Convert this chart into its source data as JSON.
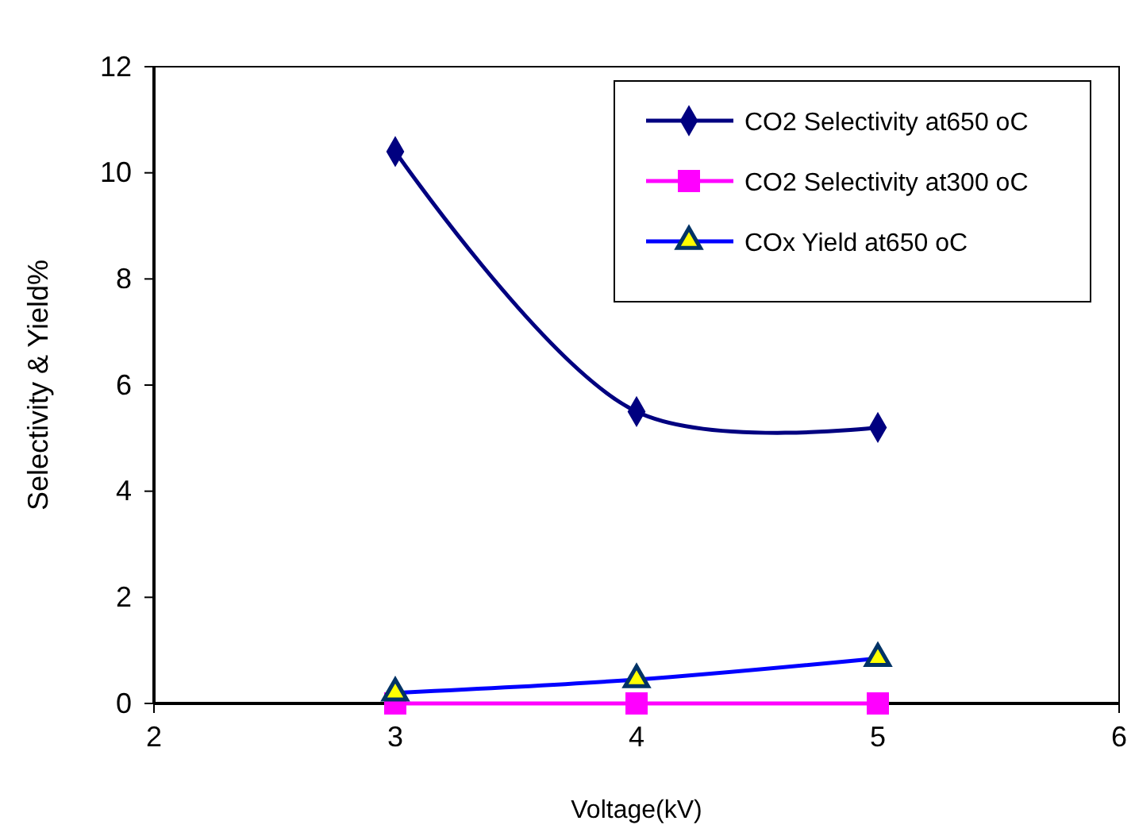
{
  "chart_data": {
    "type": "line",
    "xlabel": "Voltage(kV)",
    "ylabel": "Selectivity & Yield%",
    "x": [
      3,
      4,
      5
    ],
    "xlim": [
      2,
      6
    ],
    "xticks": [
      2,
      3,
      4,
      5,
      6
    ],
    "ylim": [
      0,
      12
    ],
    "yticks": [
      0,
      2,
      4,
      6,
      8,
      10,
      12
    ],
    "grid": false,
    "legend": "top right",
    "line_style": "solid",
    "series": [
      {
        "name": "CO2 Selectivity at650 oC",
        "color": "#000080",
        "marker": "diamond",
        "values": [
          10.4,
          5.5,
          5.2
        ]
      },
      {
        "name": "CO2 Selectivity at300 oC",
        "color": "#ff00ff",
        "marker": "square",
        "values": [
          0,
          0,
          0
        ]
      },
      {
        "name": "COx Yield at650 oC",
        "color": "#0000ff",
        "marker": "triangle",
        "values": [
          0.2,
          0.45,
          0.85
        ]
      }
    ]
  }
}
